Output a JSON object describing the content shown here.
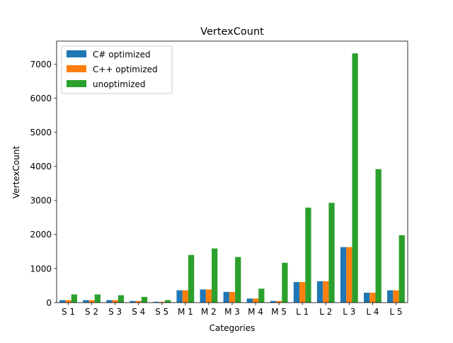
{
  "chart_data": {
    "type": "bar",
    "title": "VertexCount",
    "xlabel": "Categories",
    "ylabel": "VertexCount",
    "categories": [
      "S 1",
      "S 2",
      "S 3",
      "S 4",
      "S 5",
      "M 1",
      "M 2",
      "M 3",
      "M 4",
      "M 5",
      "L 1",
      "L 2",
      "L 3",
      "L 4",
      "L 5"
    ],
    "series": [
      {
        "name": "C# optimized",
        "color": "#1f77b4",
        "values": [
          72,
          72,
          72,
          48,
          24,
          362,
          386,
          314,
          120,
          48,
          604,
          628,
          1630,
          290,
          362
        ]
      },
      {
        "name": "C++ optimized",
        "color": "#ff7f0e",
        "values": [
          72,
          72,
          72,
          48,
          24,
          362,
          386,
          314,
          120,
          48,
          604,
          628,
          1630,
          290,
          362
        ]
      },
      {
        "name": "unoptimized",
        "color": "#2ca02c",
        "values": [
          240,
          240,
          216,
          168,
          72,
          1400,
          1590,
          1340,
          410,
          1170,
          2790,
          2930,
          7320,
          3920,
          1980
        ]
      }
    ],
    "ylim": [
      0,
      7680
    ],
    "yticks": [
      0,
      1000,
      2000,
      3000,
      4000,
      5000,
      6000,
      7000
    ],
    "legend": "upper-left",
    "grid": false
  }
}
